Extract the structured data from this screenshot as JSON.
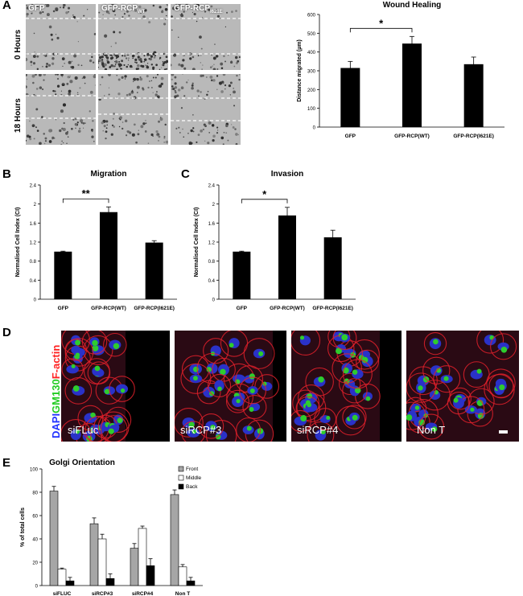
{
  "panels": {
    "A": {
      "letter": "A",
      "columns": [
        "GFP",
        "GFP-RCP",
        "GFP-RCP"
      ],
      "column_subscripts": [
        "",
        "WT",
        "I621E"
      ],
      "rows": [
        "0 Hours",
        "18 Hours"
      ]
    },
    "B": {
      "letter": "B"
    },
    "C": {
      "letter": "C"
    },
    "D": {
      "letter": "D",
      "stain_dapi": "DAPI",
      "stain_gm130": "GM130",
      "stain_factin": "F-actin",
      "images": [
        "siFLuc",
        "siRCP#3",
        "siRCP#4",
        "Non T"
      ]
    },
    "E": {
      "letter": "E"
    }
  },
  "chart_data": [
    {
      "id": "wound",
      "type": "bar",
      "title": "Wound Healing",
      "ylabel": "Distance migrated (µm)",
      "categories": [
        "GFP",
        "GFP-RCP(WT)",
        "GFP-RCP(I621E)"
      ],
      "values": [
        315,
        445,
        335
      ],
      "errors": [
        35,
        38,
        38
      ],
      "ylim": [
        0,
        600
      ],
      "yticks": [
        "0",
        "100",
        "200",
        "300",
        "400",
        "500",
        "600"
      ],
      "significance": [
        {
          "from": 0,
          "to": 1,
          "label": "*"
        }
      ],
      "color": "#000000"
    },
    {
      "id": "migration",
      "type": "bar",
      "title": "Migration",
      "ylabel": "Normalised Cell Index (CI)",
      "categories": [
        "GFP",
        "GFP-RCP(WT)",
        "GFP-RCP(I621E)"
      ],
      "values": [
        1.0,
        1.83,
        1.19
      ],
      "errors": [
        0.01,
        0.11,
        0.04
      ],
      "ylim": [
        0,
        2.4
      ],
      "yticks": [
        "0",
        "0.4",
        "0.8",
        "1.2",
        "1.6",
        "2",
        "2.4"
      ],
      "significance": [
        {
          "from": 0,
          "to": 1,
          "label": "**"
        }
      ],
      "color": "#000000"
    },
    {
      "id": "invasion",
      "type": "bar",
      "title": "Invasion",
      "ylabel": "Normalised Cell Index (CI)",
      "categories": [
        "GFP",
        "GFP-RCP(WT)",
        "GFP-RCP(I621E)"
      ],
      "values": [
        1.0,
        1.76,
        1.3
      ],
      "errors": [
        0.01,
        0.17,
        0.15
      ],
      "ylim": [
        0,
        2.4
      ],
      "yticks": [
        "0",
        "0.4",
        "0.8",
        "1.2",
        "1.6",
        "2",
        "2.4"
      ],
      "significance": [
        {
          "from": 0,
          "to": 1,
          "label": "*"
        }
      ],
      "color": "#000000"
    },
    {
      "id": "golgi",
      "type": "bar",
      "title": "Golgi Orientation",
      "ylabel": "% of total cells",
      "categories": [
        "siFLUC",
        "siRCP#3",
        "siRCP#4",
        "Non T"
      ],
      "series": [
        {
          "name": "Front",
          "values": [
            81,
            53,
            32,
            78
          ],
          "errors": [
            4,
            5,
            4,
            4
          ],
          "color": "#a6a6a6"
        },
        {
          "name": "Middle",
          "values": [
            14,
            40,
            49,
            16
          ],
          "errors": [
            1,
            4,
            2,
            2
          ],
          "color": "#ffffff"
        },
        {
          "name": "Back",
          "values": [
            4,
            6,
            17,
            4
          ],
          "errors": [
            3,
            4,
            6,
            3
          ],
          "color": "#000000"
        }
      ],
      "ylim": [
        0,
        100
      ],
      "yticks": [
        "0",
        "20",
        "40",
        "60",
        "80",
        "100"
      ],
      "legend": "top-right"
    }
  ]
}
